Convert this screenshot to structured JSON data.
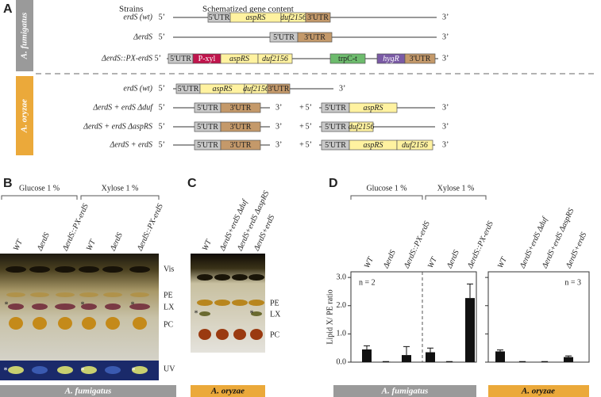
{
  "panels": {
    "a": "A",
    "b": "B",
    "c": "C",
    "d": "D"
  },
  "panel_a": {
    "strains_header": "Strains",
    "content_header": "Schematized gene content",
    "species": [
      "A. fumigatus",
      "A. oryzae"
    ],
    "five_prime": "5’",
    "three_prime": "3’",
    "plus": "+",
    "rows": [
      {
        "strain": "erdS (wt)",
        "genes": [
          "5'UTR",
          "aspRS",
          "duf2156",
          "3'UTR"
        ]
      },
      {
        "strain": "ΔerdS",
        "genes": [
          "5'UTR",
          "3'UTR"
        ]
      },
      {
        "strain": "ΔerdS::PX-erdS",
        "genes": [
          "5'UTR",
          "P-xyl",
          "aspRS",
          "duf2156",
          "trpC-t",
          "hygR",
          "3'UTR"
        ]
      },
      {
        "strain": "erdS (wt)",
        "genes": [
          "5'UTR",
          "aspRS",
          "duf2156",
          "3'UTR"
        ]
      },
      {
        "strain": "ΔerdS + erdS Δduf",
        "genes": [
          "5'UTR",
          "3'UTR"
        ],
        "genes2": [
          "5'UTR",
          "aspRS"
        ]
      },
      {
        "strain": "ΔerdS + erdS ΔaspRS",
        "genes": [
          "5'UTR",
          "3'UTR"
        ],
        "genes2": [
          "5'UTR",
          "duf2156"
        ]
      },
      {
        "strain": "ΔerdS + erdS",
        "genes": [
          "5'UTR",
          "3'UTR"
        ],
        "genes2": [
          "5'UTR",
          "aspRS",
          "duf2156"
        ]
      }
    ]
  },
  "panel_b": {
    "conditions": [
      "Glucose 1 %",
      "Xylose 1 %"
    ],
    "lanes": [
      "WT",
      "ΔerdS",
      "ΔerdS::PX-erdS",
      "WT",
      "ΔerdS",
      "ΔerdS::PX-erdS"
    ],
    "bands": [
      "Vis",
      "PE",
      "LX",
      "PC",
      "UV"
    ],
    "asterisk": "*",
    "species": "A. fumigatus"
  },
  "panel_c": {
    "lanes": [
      "WT",
      "ΔerdS+erdS Δduf",
      "ΔerdS+erdS ΔaspRS",
      "ΔerdS+erdS"
    ],
    "bands": [
      "PE",
      "LX",
      "PC"
    ],
    "asterisk": "*",
    "species": "A. oryzae"
  },
  "chart_data": [
    {
      "type": "bar",
      "ylabel": "Lipid X/ PE ratio",
      "conditions": [
        "Glucose 1 %",
        "Xylose 1 %"
      ],
      "note": "n = 2",
      "categories": [
        "WT",
        "ΔerdS",
        "ΔerdS::PX-erdS",
        "WT",
        "ΔerdS",
        "ΔerdS::PX-erdS"
      ],
      "values": [
        0.45,
        0.01,
        0.25,
        0.35,
        0.01,
        2.27
      ],
      "errors": [
        0.13,
        0.01,
        0.3,
        0.15,
        0.01,
        0.5
      ],
      "color": "#111111",
      "ylim": [
        0,
        3.2
      ],
      "yticks": [
        {
          "value": 0,
          "label": "0.0"
        },
        {
          "value": 1,
          "label": "1.0"
        },
        {
          "value": 2,
          "label": "2.0"
        },
        {
          "value": 3,
          "label": "3.0"
        }
      ],
      "species": "A. fumigatus"
    },
    {
      "type": "bar",
      "note": "n = 3",
      "categories": [
        "WT",
        "ΔerdS+erdS Δduf",
        "ΔerdS+erdS ΔaspRS",
        "ΔerdS+erdS"
      ],
      "values": [
        0.38,
        0.01,
        0.01,
        0.18
      ],
      "errors": [
        0.05,
        0.01,
        0.01,
        0.04
      ],
      "color": "#111111",
      "ylim": [
        0,
        3.2
      ],
      "yticks": [
        {
          "value": 0,
          "label": "0.0"
        },
        {
          "value": 1,
          "label": "1.0"
        },
        {
          "value": 2,
          "label": "2.0"
        },
        {
          "value": 3,
          "label": "3.0"
        }
      ],
      "species": "A. oryzae"
    }
  ]
}
